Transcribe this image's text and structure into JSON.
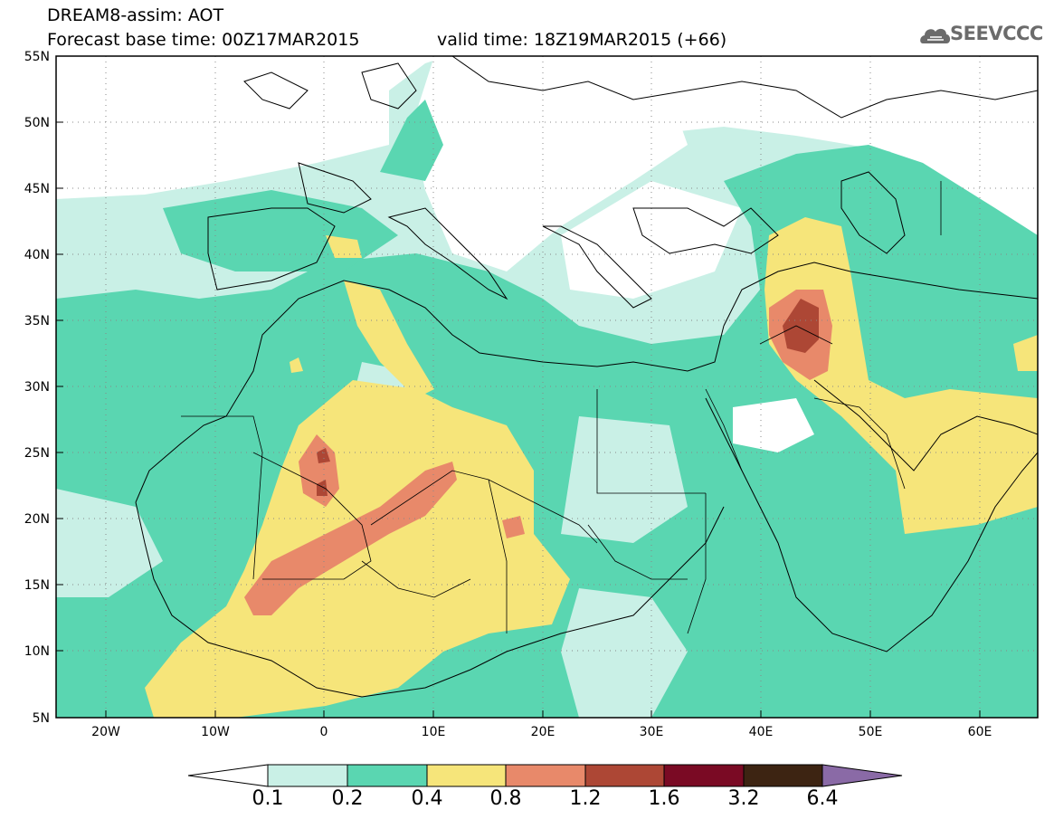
{
  "header": {
    "line1": "DREAM8-assim: AOT",
    "line2": "Forecast base time: 00Z17MAR2015",
    "line3": "valid time: 18Z19MAR2015 (+66)"
  },
  "logo": {
    "text": "SEEVCCC",
    "icon": "cloud-icon"
  },
  "map": {
    "lat_labels": [
      "55N",
      "50N",
      "45N",
      "40N",
      "35N",
      "30N",
      "25N",
      "20N",
      "15N",
      "10N",
      "5N"
    ],
    "lon_labels": [
      "20W",
      "10W",
      "0",
      "10E",
      "20E",
      "30E",
      "40E",
      "50E",
      "60E"
    ],
    "lat_range": [
      5,
      55
    ],
    "lon_range": [
      -25,
      65
    ],
    "grid": "dotted",
    "field": "Aerosol optical thickness"
  },
  "colorbar": {
    "levels": [
      "0.1",
      "0.2",
      "0.4",
      "0.8",
      "1.2",
      "1.6",
      "3.2",
      "6.4"
    ],
    "colors": [
      "#ffffff",
      "#c9f0e6",
      "#5ad6b1",
      "#f6e57a",
      "#e8896a",
      "#ad4735",
      "#7a0a24",
      "#3d2412",
      "#8a6aa6"
    ]
  },
  "colors": {
    "c1": "#c9f0e6",
    "c2": "#5ad6b1",
    "c3": "#f6e57a",
    "c4": "#e8896a",
    "c5": "#ad4735"
  }
}
